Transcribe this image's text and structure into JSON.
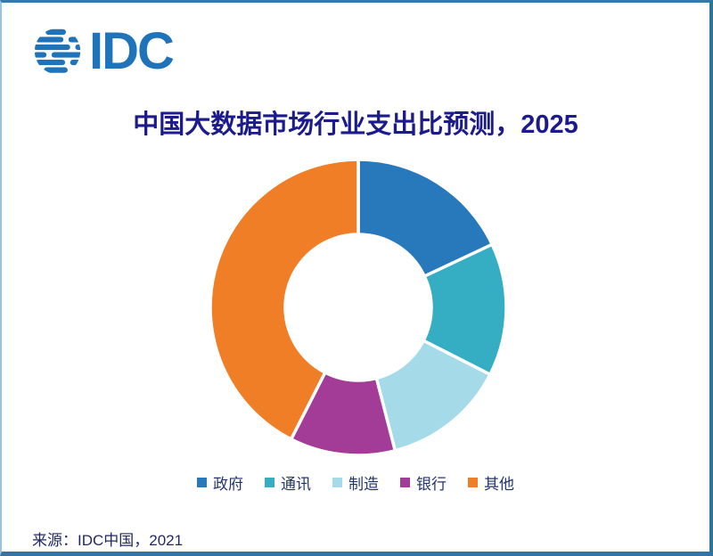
{
  "logo": {
    "text": "IDC",
    "color": "#1F73BA",
    "icon": "globe-stripes-icon"
  },
  "title": {
    "text": "中国大数据市场行业支出比预测，2025",
    "color": "#1B1B8C"
  },
  "chart_data": {
    "type": "pie",
    "subtype": "donut",
    "title": "中国大数据市场行业支出比预测，2025",
    "categories": [
      "政府",
      "通讯",
      "制造",
      "银行",
      "其他"
    ],
    "values": [
      18,
      14.5,
      13.5,
      11.5,
      42.5
    ],
    "unit": "percent-share",
    "colors": [
      "#2878BC",
      "#35AEC4",
      "#A5DAE8",
      "#A23C96",
      "#F07E26"
    ],
    "start_angle_deg": 0,
    "direction": "clockwise",
    "inner_radius_ratio": 0.49,
    "slice_gap_color": "#FFFFFF",
    "legend_position": "bottom",
    "data_labels": "none"
  },
  "source": {
    "text": "来源：IDC中国，2021"
  }
}
